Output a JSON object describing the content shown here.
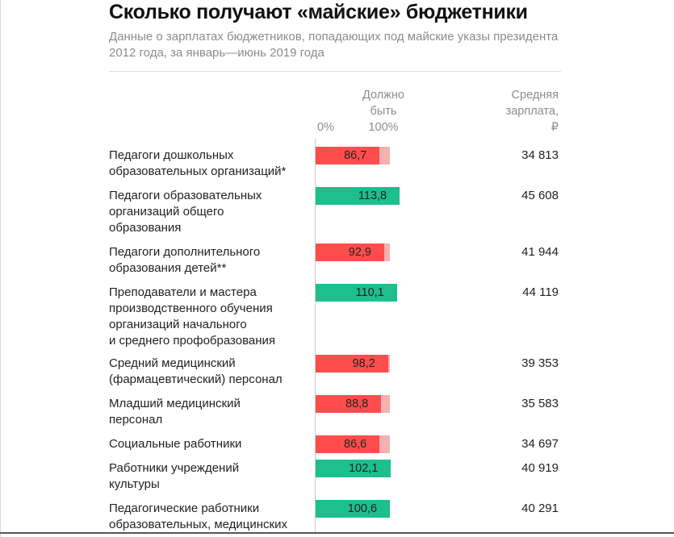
{
  "title": "Сколько получают «майские» бюджетники",
  "subtitle": "Данные о зарплатах бюджетников, попадающих под майские указы президента 2012 года, за январь—июнь 2019 года",
  "headers": {
    "zero_label": "0%",
    "target_label": "Должно\nбыть\n100%",
    "salary_label": "Средняя\nзарплата,\n₽"
  },
  "colors": {
    "below_target": "#ff4d4d",
    "above_target": "#1dbf8c",
    "target_remainder": "#f7b0b0"
  },
  "chart_data": {
    "type": "bar",
    "orientation": "horizontal",
    "title": "Сколько получают «майские» бюджетники",
    "subtitle": "Данные о зарплатах бюджетников, попадающих под майские указы президента 2012 года, за январь—июнь 2019 года",
    "target_percent": 100,
    "categories": [
      "Педагоги дошкольных образовательных организаций*",
      "Педагоги образовательных организаций общего образования",
      "Педагоги дополнительного образования детей**",
      "Преподаватели и мастера производственного обучения организаций начального и среднего профобразования",
      "Средний медицинский (фармацевтический) персонал",
      "Младший медицинский персонал",
      "Социальные работники",
      "Работники учреждений культуры",
      "Педагогические работники образовательных, медицинских"
    ],
    "series": [
      {
        "name": "Должно быть 100%",
        "values": [
          86.7,
          113.8,
          92.9,
          110.1,
          98.2,
          88.8,
          86.6,
          102.1,
          100.6
        ],
        "labels": [
          "86,7",
          "113,8",
          "92,9",
          "110,1",
          "98,2",
          "88,8",
          "86,6",
          "102,1",
          "100,6"
        ]
      },
      {
        "name": "Средняя зарплата, ₽",
        "values": [
          34813,
          45608,
          41944,
          44119,
          39353,
          35583,
          34697,
          40919,
          40291
        ],
        "labels": [
          "34 813",
          "45 608",
          "41 944",
          "44 119",
          "39 353",
          "35 583",
          "34 697",
          "40 919",
          "40 291"
        ]
      }
    ],
    "rows_display": [
      "Педагоги дошкольных\nобразовательных организаций*",
      "Педагоги образовательных\nорганизаций общего\nобразования",
      "Педагоги дополнительного\nобразования детей**",
      "Преподаватели и мастера\nпроизводственного обучения\nорганизаций начального\nи среднего профобразования",
      "Средний медицинский\n(фармацевтический) персонал",
      "Младший медицинский\nперсонал",
      "Социальные работники",
      "Работники учреждений\nкультуры",
      "Педагогические работники\nобразовательных, медицинских"
    ]
  }
}
